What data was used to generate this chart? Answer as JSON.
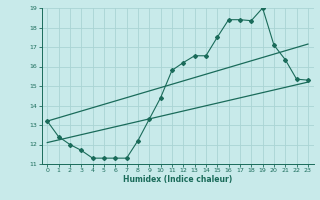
{
  "title": "",
  "xlabel": "Humidex (Indice chaleur)",
  "xlim": [
    -0.5,
    23.5
  ],
  "ylim": [
    11,
    19
  ],
  "xticks": [
    0,
    1,
    2,
    3,
    4,
    5,
    6,
    7,
    8,
    9,
    10,
    11,
    12,
    13,
    14,
    15,
    16,
    17,
    18,
    19,
    20,
    21,
    22,
    23
  ],
  "yticks": [
    11,
    12,
    13,
    14,
    15,
    16,
    17,
    18,
    19
  ],
  "color": "#1a6b5a",
  "bg_color": "#c8eaea",
  "grid_color": "#aad4d4",
  "jagged_x": [
    0,
    1,
    2,
    3,
    4,
    5,
    6,
    7,
    8,
    9,
    10,
    11,
    12,
    13,
    14,
    15,
    16,
    17,
    18,
    19,
    20,
    21,
    22,
    23
  ],
  "jagged_y": [
    13.2,
    12.4,
    12.0,
    11.7,
    11.3,
    11.3,
    11.3,
    11.3,
    12.2,
    13.3,
    14.4,
    15.8,
    16.2,
    16.55,
    16.55,
    17.5,
    18.4,
    18.4,
    18.35,
    19.0,
    17.1,
    16.35,
    15.35,
    15.3
  ],
  "lower_line_x": [
    0,
    23
  ],
  "lower_line_y": [
    12.1,
    15.2
  ],
  "upper_line_x": [
    0,
    23
  ],
  "upper_line_y": [
    13.2,
    17.15
  ]
}
